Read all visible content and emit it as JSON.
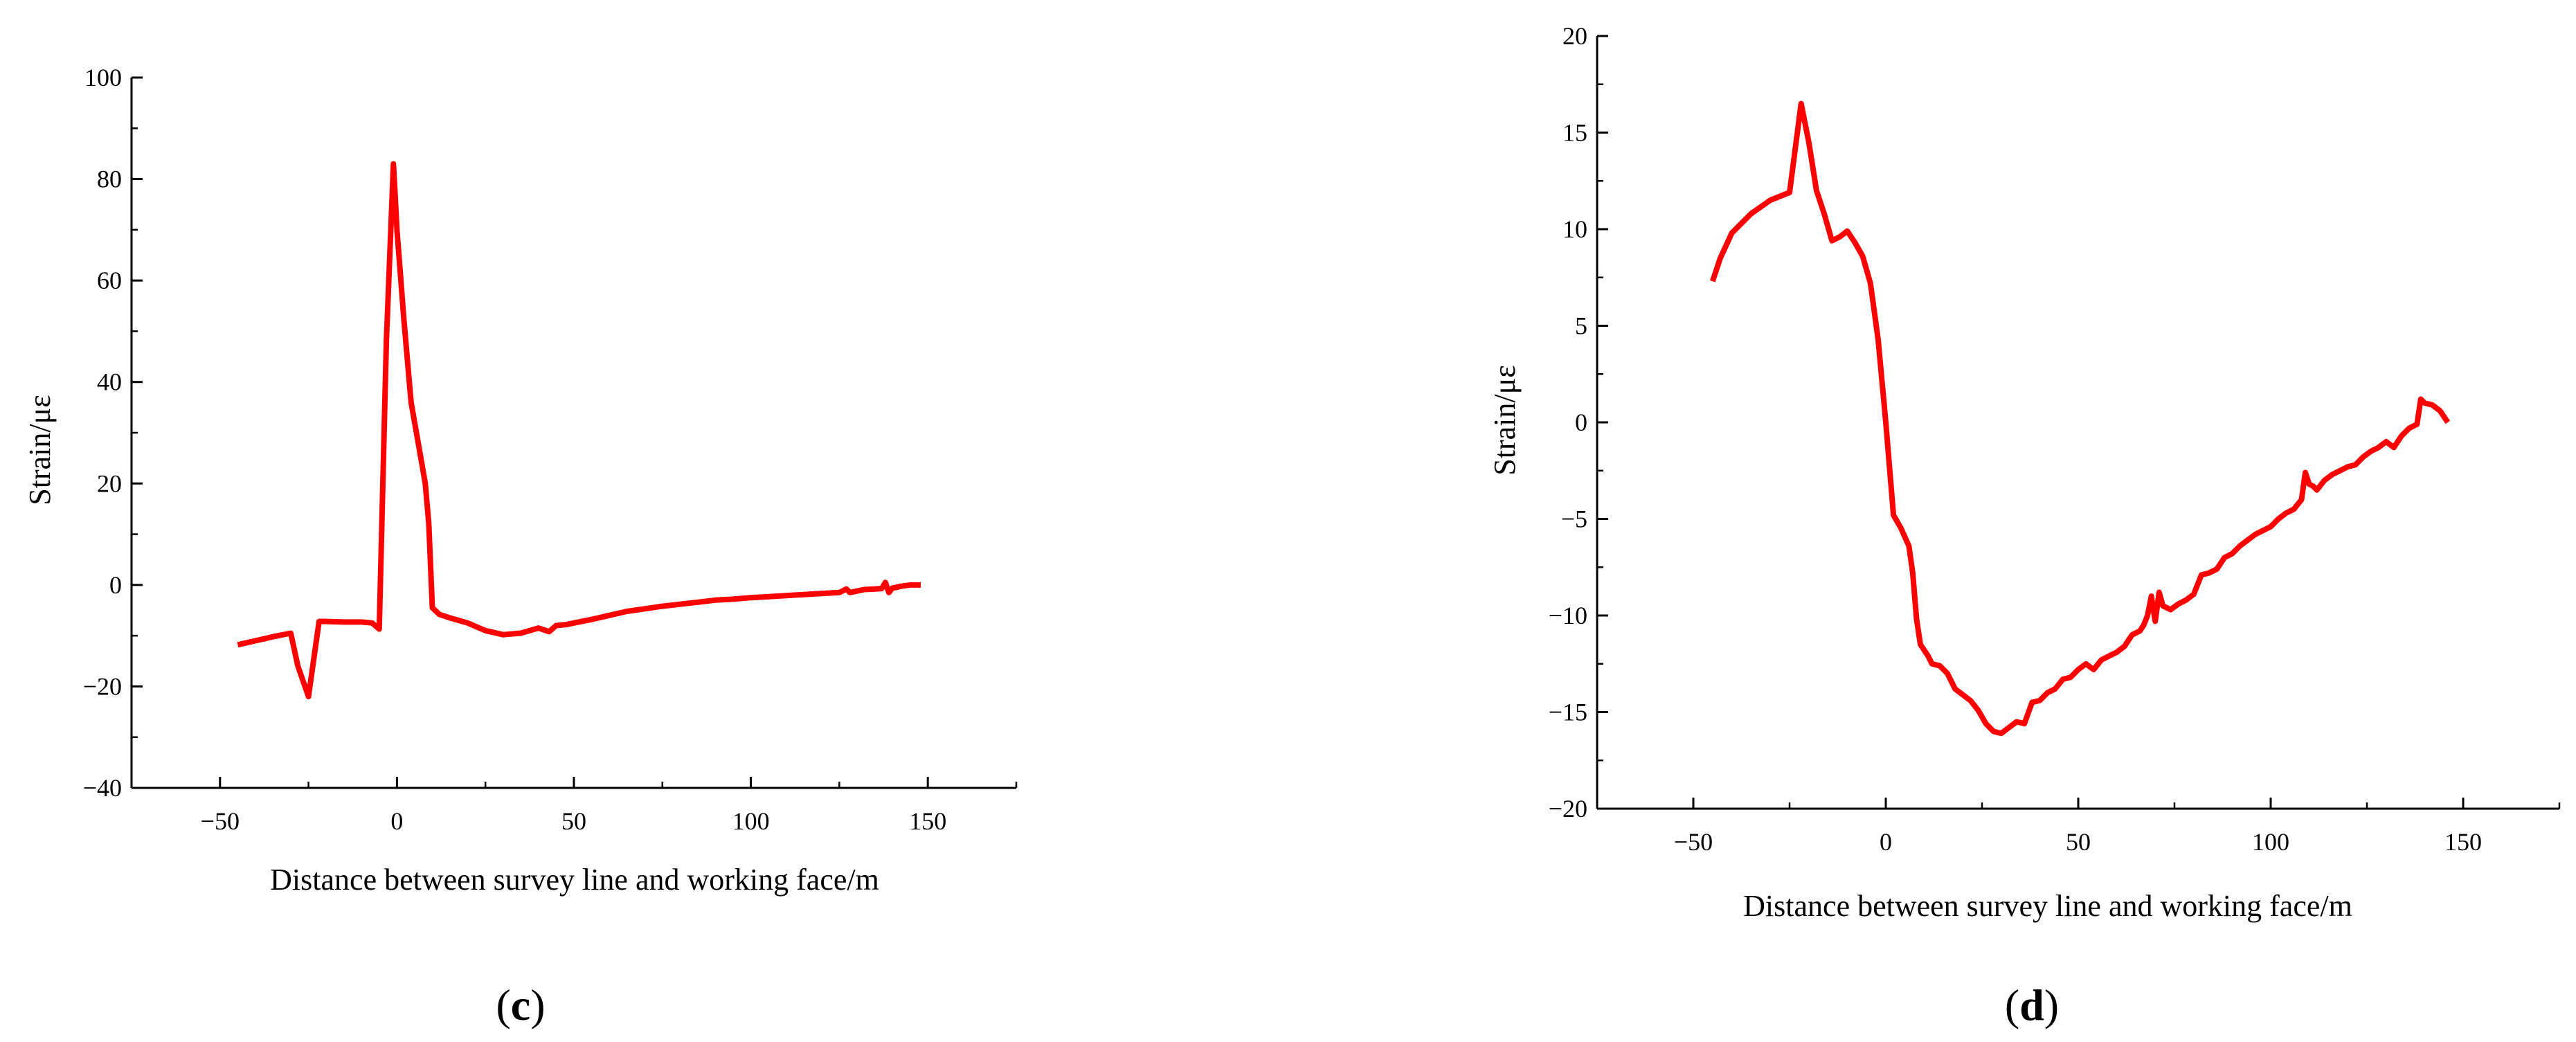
{
  "colors": {
    "series": "#ff0000",
    "axes": "#000000",
    "background": "#ffffff"
  },
  "chart_data": [
    {
      "id": "c",
      "type": "line",
      "panel_label": "c",
      "title": "",
      "xlabel": "Distance between survey line and working face/m",
      "ylabel": "Strain/με",
      "xlim": [
        -75,
        175
      ],
      "ylim": [
        -40,
        100
      ],
      "x_ticks": [
        -50,
        0,
        50,
        100,
        150
      ],
      "x_tick_labels": [
        "−50",
        "0",
        "50",
        "100",
        "150"
      ],
      "y_ticks": [
        -40,
        -20,
        0,
        20,
        40,
        60,
        80,
        100
      ],
      "y_tick_labels": [
        "−40",
        "−20",
        "0",
        "20",
        "40",
        "60",
        "80",
        "100"
      ],
      "grid": false,
      "legend": "none",
      "series": [
        {
          "color": "#ff0000",
          "x": [
            -45,
            -40,
            -35,
            -30,
            -28,
            -25,
            -22,
            -20,
            -15,
            -10,
            -7,
            -5,
            -3,
            -1,
            0,
            2,
            4,
            6,
            8,
            9,
            10,
            12,
            15,
            20,
            25,
            30,
            35,
            40,
            43,
            45,
            48,
            50,
            55,
            60,
            65,
            70,
            75,
            80,
            85,
            90,
            95,
            100,
            105,
            110,
            115,
            120,
            125,
            127,
            128,
            130,
            132,
            135,
            137,
            138,
            139,
            140,
            141,
            142,
            145,
            148
          ],
          "y": [
            -11.8,
            -11.0,
            -10.2,
            -9.5,
            -16.0,
            -22.0,
            -7.2,
            -7.2,
            -7.3,
            -7.3,
            -7.5,
            -8.7,
            48.0,
            83.0,
            70.0,
            52.0,
            36.0,
            28.0,
            20.0,
            12.0,
            -4.5,
            -5.8,
            -6.5,
            -7.5,
            -9.0,
            -9.8,
            -9.5,
            -8.5,
            -9.2,
            -8.0,
            -7.8,
            -7.5,
            -6.8,
            -6.0,
            -5.2,
            -4.7,
            -4.2,
            -3.8,
            -3.4,
            -3.0,
            -2.8,
            -2.5,
            -2.3,
            -2.1,
            -1.9,
            -1.7,
            -1.5,
            -0.8,
            -1.5,
            -1.2,
            -0.9,
            -0.8,
            -0.7,
            0.5,
            -1.5,
            -0.6,
            -0.5,
            -0.3,
            0.0,
            0.0
          ]
        }
      ]
    },
    {
      "id": "d",
      "type": "line",
      "panel_label": "d",
      "title": "",
      "xlabel": "Distance between survey line and working face/m",
      "ylabel": "Strain/με",
      "xlim": [
        -75,
        175
      ],
      "ylim": [
        -20,
        20
      ],
      "x_ticks": [
        -50,
        0,
        50,
        100,
        150
      ],
      "x_tick_labels": [
        "−50",
        "0",
        "50",
        "100",
        "150"
      ],
      "y_ticks": [
        -20,
        -15,
        -10,
        -5,
        0,
        5,
        10,
        15,
        20
      ],
      "y_tick_labels": [
        "−20",
        "−15",
        "−10",
        "−5",
        "0",
        "5",
        "10",
        "15",
        "20"
      ],
      "grid": false,
      "legend": "none",
      "series": [
        {
          "color": "#ff0000",
          "x": [
            -45,
            -43,
            -40,
            -35,
            -30,
            -25,
            -22,
            -20,
            -18,
            -16,
            -14,
            -12,
            -10,
            -8,
            -6,
            -4,
            -2,
            0,
            2,
            4,
            6,
            7,
            8,
            9,
            10,
            11,
            12,
            14,
            16,
            18,
            20,
            22,
            24,
            26,
            28,
            30,
            32,
            34,
            36,
            38,
            40,
            42,
            44,
            46,
            48,
            50,
            52,
            54,
            56,
            58,
            60,
            62,
            64,
            66,
            67,
            68,
            69,
            70,
            71,
            72,
            74,
            76,
            78,
            80,
            82,
            84,
            86,
            88,
            90,
            92,
            94,
            96,
            98,
            100,
            102,
            104,
            106,
            108,
            109,
            110,
            111,
            112,
            114,
            116,
            118,
            120,
            122,
            124,
            126,
            128,
            130,
            132,
            134,
            136,
            138,
            139,
            140,
            142,
            144,
            146
          ],
          "y": [
            7.3,
            8.5,
            9.8,
            10.8,
            11.5,
            11.9,
            16.5,
            14.5,
            12.0,
            10.8,
            9.4,
            9.6,
            9.9,
            9.3,
            8.6,
            7.2,
            4.3,
            0.0,
            -4.8,
            -5.5,
            -6.4,
            -7.8,
            -10.2,
            -11.5,
            -11.8,
            -12.1,
            -12.5,
            -12.6,
            -13.0,
            -13.8,
            -14.1,
            -14.4,
            -14.9,
            -15.6,
            -16.0,
            -16.1,
            -15.8,
            -15.5,
            -15.6,
            -14.5,
            -14.4,
            -14.0,
            -13.8,
            -13.3,
            -13.2,
            -12.8,
            -12.5,
            -12.8,
            -12.3,
            -12.1,
            -11.9,
            -11.6,
            -11.0,
            -10.8,
            -10.5,
            -10.0,
            -9.0,
            -10.3,
            -8.8,
            -9.5,
            -9.7,
            -9.4,
            -9.2,
            -8.9,
            -7.9,
            -7.8,
            -7.6,
            -7.0,
            -6.8,
            -6.4,
            -6.1,
            -5.8,
            -5.6,
            -5.4,
            -5.0,
            -4.7,
            -4.5,
            -4.0,
            -2.6,
            -3.2,
            -3.3,
            -3.5,
            -3.0,
            -2.7,
            -2.5,
            -2.3,
            -2.2,
            -1.8,
            -1.5,
            -1.3,
            -1.0,
            -1.3,
            -0.7,
            -0.3,
            -0.1,
            1.2,
            1.0,
            0.9,
            0.6,
            0.0
          ]
        }
      ]
    }
  ]
}
